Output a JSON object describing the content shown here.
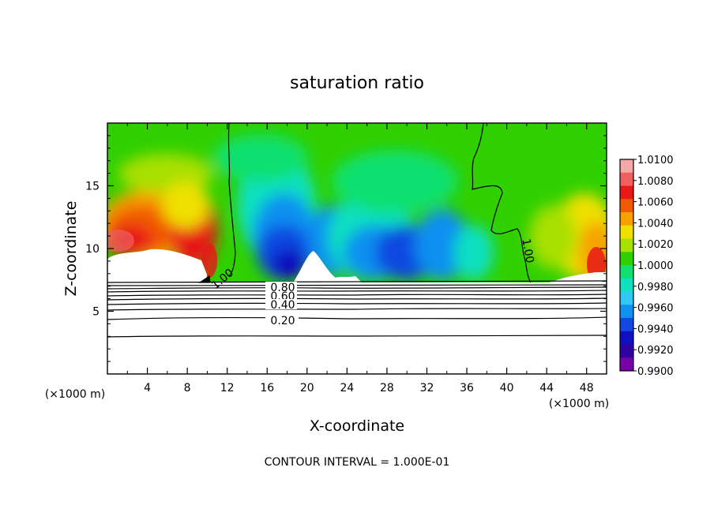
{
  "chart_data": {
    "type": "heatmap",
    "title": "saturation ratio",
    "xlabel": "X-coordinate",
    "ylabel": "Z-coordinate",
    "x_unit": "(×1000 m)",
    "y_unit": "(×1000 m)",
    "footer": "CONTOUR INTERVAL = 1.000E-01",
    "xlim": [
      0,
      50
    ],
    "ylim": [
      0,
      20
    ],
    "x_ticks": [
      "4",
      "8",
      "12",
      "16",
      "20",
      "24",
      "28",
      "32",
      "36",
      "40",
      "44",
      "48"
    ],
    "x_tick_values": [
      4,
      8,
      12,
      16,
      20,
      24,
      28,
      32,
      36,
      40,
      44,
      48
    ],
    "y_ticks": [
      "5",
      "10",
      "15"
    ],
    "y_tick_values": [
      5,
      10,
      15
    ],
    "colorbar": {
      "labels": [
        "1.0100",
        "1.0080",
        "1.0060",
        "1.0040",
        "1.0020",
        "1.0000",
        "0.9980",
        "0.9960",
        "0.9940",
        "0.9920",
        "0.9900"
      ],
      "range": [
        0.99,
        1.01
      ],
      "colors": [
        "#f4a8a8",
        "#f06060",
        "#e81818",
        "#f05a00",
        "#f8a000",
        "#f0e000",
        "#a8e000",
        "#30d000",
        "#10e070",
        "#10e0c0",
        "#30c8f0",
        "#1090f0",
        "#1048e0",
        "#1010c0",
        "#3000a0",
        "#7800a8"
      ]
    },
    "contour_labels": [
      "1.00",
      "1.00",
      "0.80",
      "0.60",
      "0.40",
      "0.20"
    ],
    "contour_levels": [
      0.2,
      0.4,
      0.6,
      0.8,
      1.0
    ]
  }
}
